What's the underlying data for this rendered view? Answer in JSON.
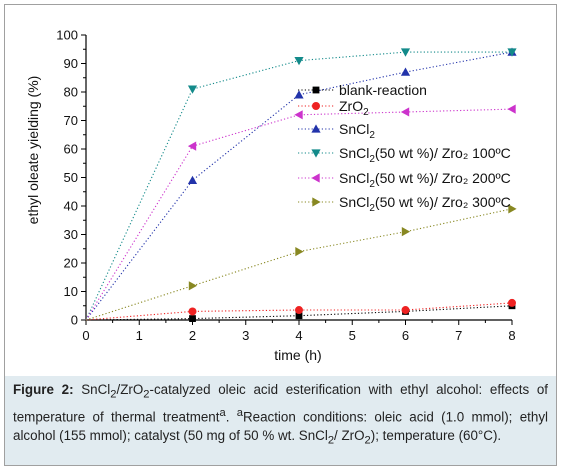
{
  "chart_data": {
    "type": "line",
    "xlabel": "time (h)",
    "ylabel": "ethyl oleate yielding (%)",
    "xlim": [
      0,
      8
    ],
    "ylim": [
      0,
      100
    ],
    "xticks": [
      "0",
      "1",
      "2",
      "3",
      "4",
      "5",
      "6",
      "7",
      "8"
    ],
    "yticks": [
      "0",
      "10",
      "20",
      "30",
      "40",
      "50",
      "60",
      "70",
      "80",
      "90",
      "100"
    ],
    "grid": false,
    "legend_position": "top-right",
    "series": [
      {
        "name": "blank-reaction",
        "name_sub": "",
        "name_tail": "",
        "color": "#000000",
        "marker": "square",
        "x": [
          0,
          2,
          4,
          6,
          8
        ],
        "y": [
          0,
          0.5,
          1.5,
          3,
          5
        ]
      },
      {
        "name": "ZrO",
        "name_sub": "2",
        "name_tail": "",
        "color": "#ee2222",
        "marker": "circle",
        "x": [
          0,
          2,
          4,
          6,
          8
        ],
        "y": [
          0,
          3,
          3.5,
          3.5,
          6
        ]
      },
      {
        "name": "SnCl",
        "name_sub": "2",
        "name_tail": "",
        "color": "#2233aa",
        "marker": "triangle-up",
        "x": [
          0,
          2,
          4,
          6,
          8
        ],
        "y": [
          0,
          49,
          79,
          87,
          94
        ]
      },
      {
        "name": "SnCl",
        "name_sub": "2",
        "name_tail": "(50 wt %)/ Zro₂ 100ºC",
        "color": "#138a8a",
        "marker": "triangle-down",
        "x": [
          0,
          2,
          4,
          6,
          8
        ],
        "y": [
          0,
          81,
          91,
          94,
          94
        ]
      },
      {
        "name": "SnCl",
        "name_sub": "2",
        "name_tail": "(50 wt %)/ Zro₂ 200ºC",
        "color": "#cc33cc",
        "marker": "triangle-left",
        "x": [
          0,
          2,
          4,
          6,
          8
        ],
        "y": [
          0,
          61,
          72,
          73,
          74
        ]
      },
      {
        "name": "SnCl",
        "name_sub": "2",
        "name_tail": "(50 wt %)/ Zro₂ 300ºC",
        "color": "#888822",
        "marker": "triangle-right",
        "x": [
          0,
          2,
          4,
          6,
          8
        ],
        "y": [
          0,
          12,
          24,
          31,
          39
        ]
      }
    ]
  },
  "caption": {
    "label": "Figure 2:",
    "text_1": " SnCl",
    "sub_1": "2",
    "text_2": "/ZrO",
    "sub_2": "2",
    "text_3": "-catalyzed oleic acid esterification with ethyl alcohol: effects of temperature of thermal treatment",
    "sup_1": "a",
    "text_4": ". ",
    "sup_2": "a",
    "text_5": "Reaction conditions: oleic acid (1.0 mmol); ethyl alcohol (155 mmol); catalyst (50 mg of 50 % wt. SnCl",
    "sub_3": "2",
    "text_6": "/ ZrO",
    "sub_4": "2",
    "text_7": "); temperature (60°C)."
  }
}
